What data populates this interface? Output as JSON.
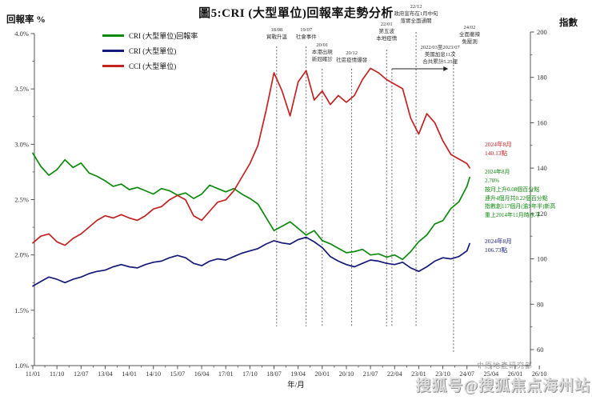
{
  "page": {
    "title": "圖5:CRI (大型單位)回報率走勢分析"
  },
  "watermarks": {
    "small": "中原地產研究部",
    "big": "搜狐号@搜狐焦点海州站"
  },
  "chart_data": {
    "type": "line",
    "title": "圖5:CRI (大型單位)回報率走勢分析",
    "x_axis": {
      "title": "年/月",
      "tick_labels": [
        "11/01",
        "11/10",
        "12/07",
        "13/04",
        "14/01",
        "14/10",
        "15/07",
        "16/04",
        "17/01",
        "17/10",
        "18/07",
        "19/04",
        "20/01",
        "20/10",
        "21/07",
        "22/04",
        "23/01",
        "23/10",
        "24/07",
        "25/04",
        "26/01",
        "26/10"
      ],
      "tick_months": [
        0,
        9,
        18,
        27,
        36,
        45,
        54,
        63,
        72,
        81,
        90,
        99,
        108,
        117,
        126,
        135,
        144,
        153,
        162,
        171,
        180,
        189
      ]
    },
    "y_left": {
      "title": "回報率 %",
      "tick_labels": [
        "4.0%",
        "3.5%",
        "3.0%",
        "2.5%",
        "2.0%",
        "1.5%",
        "1.0%"
      ],
      "tick_values": [
        4.0,
        3.5,
        3.0,
        2.5,
        2.0,
        1.5,
        1.0
      ],
      "range": [
        1.0,
        4.0
      ]
    },
    "y_right": {
      "title": "指數",
      "tick_labels": [
        "200",
        "180",
        "160",
        "140",
        "120",
        "100",
        "80",
        "60"
      ],
      "tick_values": [
        200,
        180,
        160,
        140,
        120,
        100,
        80,
        60
      ],
      "range": [
        60,
        200
      ]
    },
    "x_months": [
      0,
      3,
      6,
      9,
      12,
      15,
      18,
      21,
      24,
      27,
      30,
      33,
      36,
      39,
      42,
      45,
      48,
      51,
      54,
      57,
      60,
      63,
      66,
      69,
      72,
      75,
      78,
      81,
      84,
      87,
      90,
      93,
      96,
      99,
      102,
      105,
      108,
      111,
      114,
      117,
      120,
      123,
      126,
      129,
      132,
      135,
      138,
      141,
      144,
      147,
      150,
      153,
      156,
      159,
      162,
      163
    ],
    "series": [
      {
        "name": "CRI (大型單位)回報率",
        "axis": "left",
        "color_key": "green",
        "values": [
          2.92,
          2.8,
          2.72,
          2.77,
          2.86,
          2.79,
          2.83,
          2.74,
          2.71,
          2.67,
          2.62,
          2.64,
          2.59,
          2.61,
          2.58,
          2.55,
          2.6,
          2.58,
          2.54,
          2.56,
          2.51,
          2.55,
          2.63,
          2.6,
          2.57,
          2.6,
          2.55,
          2.51,
          2.46,
          2.34,
          2.22,
          2.26,
          2.3,
          2.24,
          2.18,
          2.22,
          2.13,
          2.1,
          2.06,
          2.02,
          2.03,
          2.05,
          2.0,
          2.01,
          1.98,
          2.0,
          1.96,
          2.03,
          2.12,
          2.18,
          2.28,
          2.31,
          2.42,
          2.48,
          2.62,
          2.7
        ]
      },
      {
        "name": "CRI (大型單位)",
        "axis": "right",
        "color_key": "navy",
        "values": [
          88,
          90,
          92,
          91,
          89.5,
          91,
          92,
          93.5,
          94.5,
          95,
          96.5,
          97.5,
          96.5,
          96,
          97.5,
          98.5,
          99,
          100.5,
          101.5,
          100.5,
          98,
          97,
          99,
          100,
          99.5,
          101,
          102.5,
          103.5,
          104.5,
          106.5,
          108,
          107,
          106.5,
          108.5,
          109.5,
          107.5,
          105,
          101,
          99,
          97.5,
          96.5,
          98,
          99.5,
          99,
          98,
          97.5,
          98.5,
          96,
          94.5,
          96.5,
          99,
          100.5,
          100,
          101,
          103.5,
          106.73
        ]
      },
      {
        "name": "CCI (大型單位)",
        "axis": "right",
        "color_key": "red",
        "values": [
          107,
          110,
          111,
          107.5,
          106,
          109,
          111,
          114,
          117,
          119,
          118,
          119.5,
          118,
          117,
          119,
          122,
          123,
          126,
          128,
          126,
          119,
          117,
          121,
          125,
          126,
          130,
          136,
          142,
          150,
          165,
          182,
          174,
          163,
          178,
          183,
          170,
          174,
          168,
          172,
          169,
          172,
          179,
          184,
          182,
          179,
          177,
          175,
          162,
          155,
          164,
          160,
          152,
          146,
          144,
          142,
          140.13
        ]
      }
    ],
    "annotations": [
      {
        "month": 91,
        "text": "18/08\n貿戰升溫",
        "text_top": 33,
        "line_top": 58
      },
      {
        "month": 102,
        "text": "19/07\n社會事件",
        "text_top": 33,
        "line_top": 58
      },
      {
        "month": 108,
        "text": "20/01\n本港出現\n新冠確診",
        "text_top": 52,
        "line_top": 86
      },
      {
        "month": 119,
        "text": "20/12\n社區疫情爆發",
        "text_top": 62,
        "line_top": 86
      },
      {
        "month": 132,
        "text": "22/01\n第五波\n本地疫情",
        "text_top": 26,
        "line_top": 62
      },
      {
        "month": 134,
        "text": "",
        "text_top": 0,
        "line_top": 86
      },
      {
        "month": 143,
        "text": "22/12\n政府宣布在1月中旬\n落實全面通關",
        "text_top": 4,
        "line_top": 40
      },
      {
        "month": 157,
        "text": "24/02\n全面撤辣\n免壓測",
        "text_top": 30,
        "line_top": 64,
        "text_dx": 20,
        "line_bottom": 440
      }
    ],
    "rate_hike_note": {
      "text": "2022/03至2023/07\n美國加息11次\n合共累計5.25厘",
      "from_month": 134,
      "to_month": 155,
      "arrow_y": 86,
      "text_center_month": 152,
      "text_top": 55
    },
    "endpoint_labels": {
      "red": {
        "text": "2024年8月\n140.13點"
      },
      "green": {
        "text": "2024年8月\n2.70%\n按月上升0.08個百分點\n連升4個月共0.22個百分點\n指數創117個月(逾9年半)新高\n重上2014年11月時水平"
      },
      "blue": {
        "text": "2024年8月\n106.73點"
      }
    },
    "colors": {
      "green": "#0d8a0d",
      "navy": "#141a78",
      "red": "#c32222",
      "axis": "#555",
      "tick_text": "#333"
    }
  }
}
